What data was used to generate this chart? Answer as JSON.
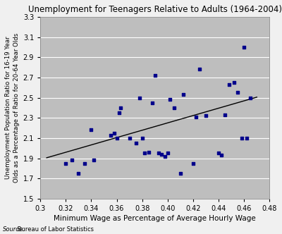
{
  "title": "Unemployment for Teenagers Relative to Adults (1964-2004)",
  "xlabel": "Minimum Wage as Percentage of Average Hourly Wage",
  "ylabel_line1": "Unemployment Population Ratio for 16-19 Year",
  "ylabel_line2": "Olds as a Percentage of Ratio for 20-64 Year Olds",
  "source_label": "Source:",
  "source_text": " Bureau of Labor Statistics",
  "xlim": [
    0.3,
    0.48
  ],
  "ylim": [
    1.5,
    3.3
  ],
  "xticks": [
    0.3,
    0.32,
    0.34,
    0.36,
    0.38,
    0.4,
    0.42,
    0.44,
    0.46,
    0.48
  ],
  "yticks": [
    1.5,
    1.7,
    1.9,
    2.1,
    2.3,
    2.5,
    2.7,
    2.9,
    3.1,
    3.3
  ],
  "scatter_color": "#00008B",
  "line_color": "#000000",
  "bg_color": "#BEBEBE",
  "fig_color": "#F0F0F0",
  "scatter_x": [
    0.32,
    0.325,
    0.33,
    0.335,
    0.34,
    0.342,
    0.355,
    0.358,
    0.36,
    0.362,
    0.363,
    0.37,
    0.375,
    0.378,
    0.38,
    0.382,
    0.385,
    0.388,
    0.39,
    0.393,
    0.395,
    0.398,
    0.4,
    0.402,
    0.405,
    0.41,
    0.412,
    0.42,
    0.422,
    0.425,
    0.43,
    0.44,
    0.442,
    0.445,
    0.448,
    0.452,
    0.455,
    0.458,
    0.46,
    0.462,
    0.465
  ],
  "scatter_y": [
    1.85,
    1.88,
    1.75,
    1.85,
    2.18,
    1.88,
    2.13,
    2.15,
    2.1,
    2.35,
    2.4,
    2.1,
    2.05,
    2.5,
    2.1,
    1.95,
    1.96,
    2.45,
    2.72,
    1.95,
    1.94,
    1.92,
    1.95,
    2.48,
    2.4,
    1.75,
    2.53,
    1.85,
    2.31,
    2.78,
    2.32,
    1.95,
    1.93,
    2.33,
    2.63,
    2.65,
    2.55,
    2.1,
    3.0,
    2.1,
    2.5
  ],
  "trend_x": [
    0.305,
    0.47
  ],
  "trend_y": [
    1.905,
    2.505
  ]
}
